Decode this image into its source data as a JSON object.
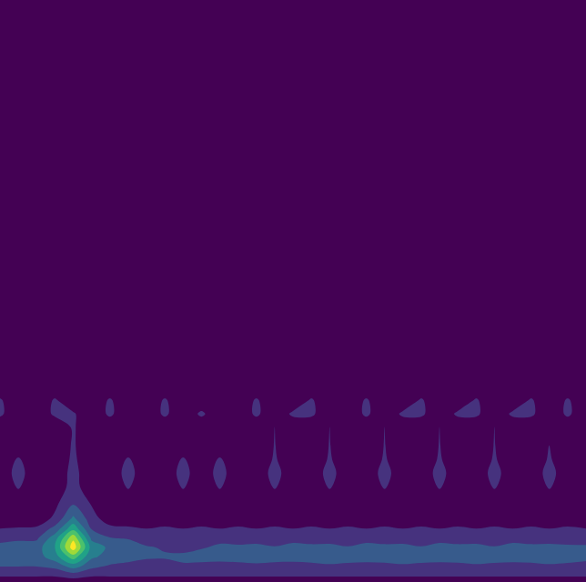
{
  "chart_data": {
    "type": "contour",
    "tick_labels": false,
    "grid": false,
    "xlim": [
      0,
      640
    ],
    "ylim": [
      0,
      640
    ],
    "x": [
      0,
      20,
      40,
      60,
      80,
      100,
      120,
      140,
      160,
      180,
      200,
      220,
      240,
      260,
      280,
      300,
      320,
      340,
      360,
      380,
      400,
      420,
      440,
      460,
      480,
      500,
      520,
      540,
      560,
      580,
      600,
      620,
      640
    ],
    "y": [
      0,
      8,
      18,
      28,
      38,
      48,
      58,
      70,
      85,
      105,
      120,
      135,
      150,
      170,
      185,
      200,
      215,
      230,
      640
    ],
    "zlim": [
      0,
      1
    ],
    "levels": [
      0.125,
      0.25,
      0.375,
      0.5,
      0.625,
      0.75,
      0.875
    ],
    "z": [
      [
        0.05,
        0.05,
        0.05,
        0.05,
        0.05,
        0.05,
        0.05,
        0.05,
        0.05,
        0.05,
        0.05,
        0.05,
        0.05,
        0.05,
        0.05,
        0.05,
        0.05,
        0.05,
        0.05,
        0.05,
        0.05,
        0.05,
        0.05,
        0.05,
        0.05,
        0.05,
        0.05,
        0.05,
        0.05,
        0.05,
        0.05,
        0.05,
        0.05
      ],
      [
        0.15,
        0.15,
        0.15,
        0.15,
        0.2,
        0.15,
        0.15,
        0.15,
        0.15,
        0.15,
        0.15,
        0.15,
        0.15,
        0.15,
        0.15,
        0.15,
        0.15,
        0.15,
        0.15,
        0.15,
        0.15,
        0.15,
        0.15,
        0.15,
        0.15,
        0.15,
        0.15,
        0.15,
        0.15,
        0.15,
        0.15,
        0.15,
        0.15
      ],
      [
        0.26,
        0.26,
        0.26,
        0.3,
        0.45,
        0.3,
        0.24,
        0.22,
        0.2,
        0.22,
        0.24,
        0.22,
        0.2,
        0.22,
        0.24,
        0.22,
        0.2,
        0.22,
        0.24,
        0.22,
        0.2,
        0.22,
        0.24,
        0.22,
        0.2,
        0.22,
        0.24,
        0.22,
        0.2,
        0.22,
        0.24,
        0.22,
        0.2
      ],
      [
        0.32,
        0.32,
        0.32,
        0.45,
        0.7,
        0.4,
        0.33,
        0.3,
        0.27,
        0.26,
        0.27,
        0.3,
        0.31,
        0.3,
        0.28,
        0.3,
        0.32,
        0.31,
        0.3,
        0.32,
        0.33,
        0.31,
        0.3,
        0.32,
        0.33,
        0.31,
        0.3,
        0.32,
        0.33,
        0.31,
        0.3,
        0.32,
        0.3
      ],
      [
        0.3,
        0.33,
        0.32,
        0.5,
        0.95,
        0.45,
        0.35,
        0.33,
        0.26,
        0.24,
        0.22,
        0.24,
        0.27,
        0.28,
        0.27,
        0.26,
        0.28,
        0.29,
        0.27,
        0.26,
        0.28,
        0.29,
        0.27,
        0.26,
        0.28,
        0.29,
        0.27,
        0.26,
        0.28,
        0.29,
        0.27,
        0.28,
        0.27
      ],
      [
        0.2,
        0.22,
        0.23,
        0.45,
        0.85,
        0.35,
        0.26,
        0.24,
        0.2,
        0.18,
        0.22,
        0.18,
        0.22,
        0.18,
        0.22,
        0.18,
        0.22,
        0.18,
        0.22,
        0.18,
        0.22,
        0.18,
        0.22,
        0.18,
        0.22,
        0.18,
        0.22,
        0.18,
        0.22,
        0.18,
        0.22,
        0.18,
        0.2
      ],
      [
        0.13,
        0.14,
        0.15,
        0.3,
        0.6,
        0.25,
        0.17,
        0.15,
        0.13,
        0.15,
        0.13,
        0.15,
        0.13,
        0.15,
        0.13,
        0.15,
        0.13,
        0.15,
        0.13,
        0.15,
        0.13,
        0.15,
        0.13,
        0.15,
        0.13,
        0.15,
        0.13,
        0.15,
        0.13,
        0.15,
        0.13,
        0.15,
        0.13
      ],
      [
        0.05,
        0.05,
        0.05,
        0.15,
        0.4,
        0.18,
        0.05,
        0.05,
        0.05,
        0.05,
        0.05,
        0.05,
        0.05,
        0.05,
        0.05,
        0.05,
        0.05,
        0.05,
        0.05,
        0.05,
        0.05,
        0.05,
        0.05,
        0.05,
        0.05,
        0.05,
        0.05,
        0.05,
        0.05,
        0.05,
        0.05,
        0.05,
        0.05
      ],
      [
        0.03,
        0.03,
        0.03,
        0.1,
        0.25,
        0.12,
        0.03,
        0.03,
        0.03,
        0.03,
        0.03,
        0.03,
        0.03,
        0.03,
        0.03,
        0.03,
        0.03,
        0.03,
        0.03,
        0.03,
        0.03,
        0.03,
        0.03,
        0.03,
        0.03,
        0.03,
        0.03,
        0.03,
        0.03,
        0.03,
        0.03,
        0.03,
        0.03
      ],
      [
        0.03,
        0.14,
        0.03,
        0.03,
        0.18,
        0.03,
        0.03,
        0.14,
        0.03,
        0.03,
        0.14,
        0.03,
        0.14,
        0.03,
        0.03,
        0.14,
        0.03,
        0.03,
        0.14,
        0.03,
        0.03,
        0.14,
        0.03,
        0.03,
        0.14,
        0.03,
        0.03,
        0.14,
        0.03,
        0.03,
        0.14,
        0.03,
        0.03
      ],
      [
        0.03,
        0.18,
        0.03,
        0.03,
        0.17,
        0.03,
        0.03,
        0.18,
        0.03,
        0.03,
        0.18,
        0.03,
        0.18,
        0.03,
        0.03,
        0.18,
        0.03,
        0.03,
        0.18,
        0.03,
        0.03,
        0.18,
        0.03,
        0.03,
        0.18,
        0.03,
        0.03,
        0.18,
        0.03,
        0.03,
        0.18,
        0.03,
        0.03
      ],
      [
        0.03,
        0.14,
        0.03,
        0.03,
        0.15,
        0.03,
        0.03,
        0.14,
        0.03,
        0.03,
        0.14,
        0.03,
        0.14,
        0.03,
        0.03,
        0.14,
        0.03,
        0.03,
        0.14,
        0.03,
        0.03,
        0.14,
        0.03,
        0.03,
        0.14,
        0.03,
        0.03,
        0.14,
        0.03,
        0.03,
        0.14,
        0.03,
        0.03
      ],
      [
        0.03,
        0.03,
        0.03,
        0.03,
        0.14,
        0.03,
        0.03,
        0.03,
        0.03,
        0.03,
        0.03,
        0.03,
        0.03,
        0.03,
        0.03,
        0.13,
        0.03,
        0.03,
        0.13,
        0.03,
        0.03,
        0.13,
        0.03,
        0.03,
        0.13,
        0.03,
        0.03,
        0.13,
        0.03,
        0.03,
        0.13,
        0.03,
        0.03
      ],
      [
        0.03,
        0.03,
        0.03,
        0.03,
        0.14,
        0.03,
        0.03,
        0.03,
        0.03,
        0.03,
        0.03,
        0.03,
        0.03,
        0.03,
        0.03,
        0.13,
        0.03,
        0.03,
        0.13,
        0.03,
        0.03,
        0.13,
        0.03,
        0.03,
        0.13,
        0.03,
        0.03,
        0.13,
        0.03,
        0.03,
        0.03,
        0.03,
        0.03
      ],
      [
        0.15,
        0.03,
        0.03,
        0.15,
        0.14,
        0.03,
        0.15,
        0.03,
        0.03,
        0.15,
        0.03,
        0.15,
        0.03,
        0.03,
        0.15,
        0.03,
        0.15,
        0.15,
        0.03,
        0.03,
        0.15,
        0.03,
        0.15,
        0.15,
        0.03,
        0.15,
        0.15,
        0.03,
        0.15,
        0.15,
        0.03,
        0.15,
        0.03
      ],
      [
        0.14,
        0.03,
        0.03,
        0.14,
        0.03,
        0.03,
        0.14,
        0.03,
        0.03,
        0.14,
        0.03,
        0.03,
        0.03,
        0.03,
        0.14,
        0.03,
        0.03,
        0.14,
        0.03,
        0.03,
        0.14,
        0.03,
        0.03,
        0.14,
        0.03,
        0.03,
        0.14,
        0.03,
        0.03,
        0.14,
        0.03,
        0.14,
        0.03
      ],
      [
        0.03,
        0.03,
        0.03,
        0.03,
        0.03,
        0.03,
        0.03,
        0.03,
        0.03,
        0.03,
        0.03,
        0.03,
        0.03,
        0.03,
        0.03,
        0.03,
        0.03,
        0.03,
        0.03,
        0.03,
        0.03,
        0.03,
        0.03,
        0.03,
        0.03,
        0.03,
        0.03,
        0.03,
        0.03,
        0.03,
        0.03,
        0.03,
        0.03
      ],
      [
        0,
        0,
        0,
        0,
        0,
        0,
        0,
        0,
        0,
        0,
        0,
        0,
        0,
        0,
        0,
        0,
        0,
        0,
        0,
        0,
        0,
        0,
        0,
        0,
        0,
        0,
        0,
        0,
        0,
        0,
        0,
        0,
        0
      ],
      [
        0,
        0,
        0,
        0,
        0,
        0,
        0,
        0,
        0,
        0,
        0,
        0,
        0,
        0,
        0,
        0,
        0,
        0,
        0,
        0,
        0,
        0,
        0,
        0,
        0,
        0,
        0,
        0,
        0,
        0,
        0,
        0,
        0
      ]
    ]
  }
}
